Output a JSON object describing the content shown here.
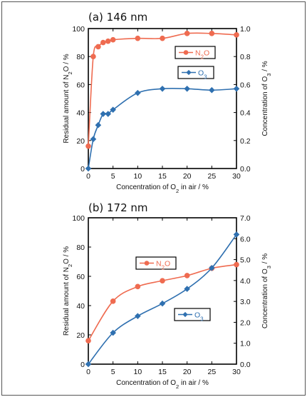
{
  "chart_data": [
    {
      "type": "line",
      "title": "(a) 146 nm",
      "xlabel": {
        "pre": "Concentration of O",
        "sub": "2",
        "post": " in air / %"
      },
      "ylabel": {
        "pre": "Residual amount of N",
        "sub": "2",
        "post": "O / %"
      },
      "y2label": {
        "pre": "Concentration of O",
        "sub": "3",
        "post": " / %"
      },
      "xlim": [
        0,
        30
      ],
      "ylim": [
        0,
        100
      ],
      "y2lim": [
        0,
        1.0
      ],
      "xticks": [
        "0",
        "5",
        "10",
        "15",
        "20",
        "25",
        "30"
      ],
      "yticks": [
        "0",
        "20",
        "40",
        "60",
        "80",
        "100"
      ],
      "y2ticks": [
        "0.0",
        "0.2",
        "0.4",
        "0.6",
        "0.8",
        "1.0"
      ],
      "series": [
        {
          "name": {
            "pre": "N",
            "sub": "2",
            "post": "O"
          },
          "axis": "left",
          "color": "#ef6b50",
          "marker": "circle",
          "x": [
            0,
            1,
            2,
            3,
            4,
            5,
            10,
            15,
            20,
            25,
            30
          ],
          "y": [
            16,
            80,
            87,
            90,
            91,
            92,
            93,
            93,
            96.5,
            96.5,
            95.5
          ]
        },
        {
          "name": {
            "pre": "O",
            "sub": "3",
            "post": ""
          },
          "axis": "right",
          "color": "#2f70b0",
          "marker": "diamond",
          "x": [
            0,
            1,
            2,
            3,
            4,
            5,
            10,
            15,
            20,
            25,
            30
          ],
          "y": [
            0.0,
            0.21,
            0.31,
            0.39,
            0.39,
            0.42,
            0.54,
            0.57,
            0.57,
            0.56,
            0.57
          ]
        }
      ]
    },
    {
      "type": "line",
      "title": "(b) 172 nm",
      "xlabel": {
        "pre": "Concentration of O",
        "sub": "2",
        "post": " in air / %"
      },
      "ylabel": {
        "pre": "Residual amount of N",
        "sub": "2",
        "post": "O / %"
      },
      "y2label": {
        "pre": "Concentration of O",
        "sub": "3",
        "post": " / %"
      },
      "xlim": [
        0,
        30
      ],
      "ylim": [
        0,
        100
      ],
      "y2lim": [
        0,
        7.0
      ],
      "xticks": [
        "0",
        "5",
        "10",
        "15",
        "20",
        "25",
        "30"
      ],
      "yticks": [
        "0",
        "20",
        "40",
        "60",
        "80",
        "100"
      ],
      "y2ticks": [
        "0.0",
        "1.0",
        "2.0",
        "3.0",
        "4.0",
        "5.0",
        "6.0",
        "7.0"
      ],
      "series": [
        {
          "name": {
            "pre": "N",
            "sub": "2",
            "post": "O"
          },
          "axis": "left",
          "color": "#ef6b50",
          "marker": "circle",
          "x": [
            0,
            5,
            10,
            15,
            20,
            25,
            30
          ],
          "y": [
            16,
            43,
            53,
            57,
            60.5,
            65.5,
            68
          ]
        },
        {
          "name": {
            "pre": "O",
            "sub": "3",
            "post": ""
          },
          "axis": "right",
          "color": "#2f70b0",
          "marker": "diamond",
          "x": [
            0,
            5,
            10,
            15,
            20,
            25,
            30
          ],
          "y": [
            0.0,
            1.5,
            2.3,
            2.9,
            3.6,
            4.6,
            6.2
          ]
        }
      ]
    }
  ]
}
